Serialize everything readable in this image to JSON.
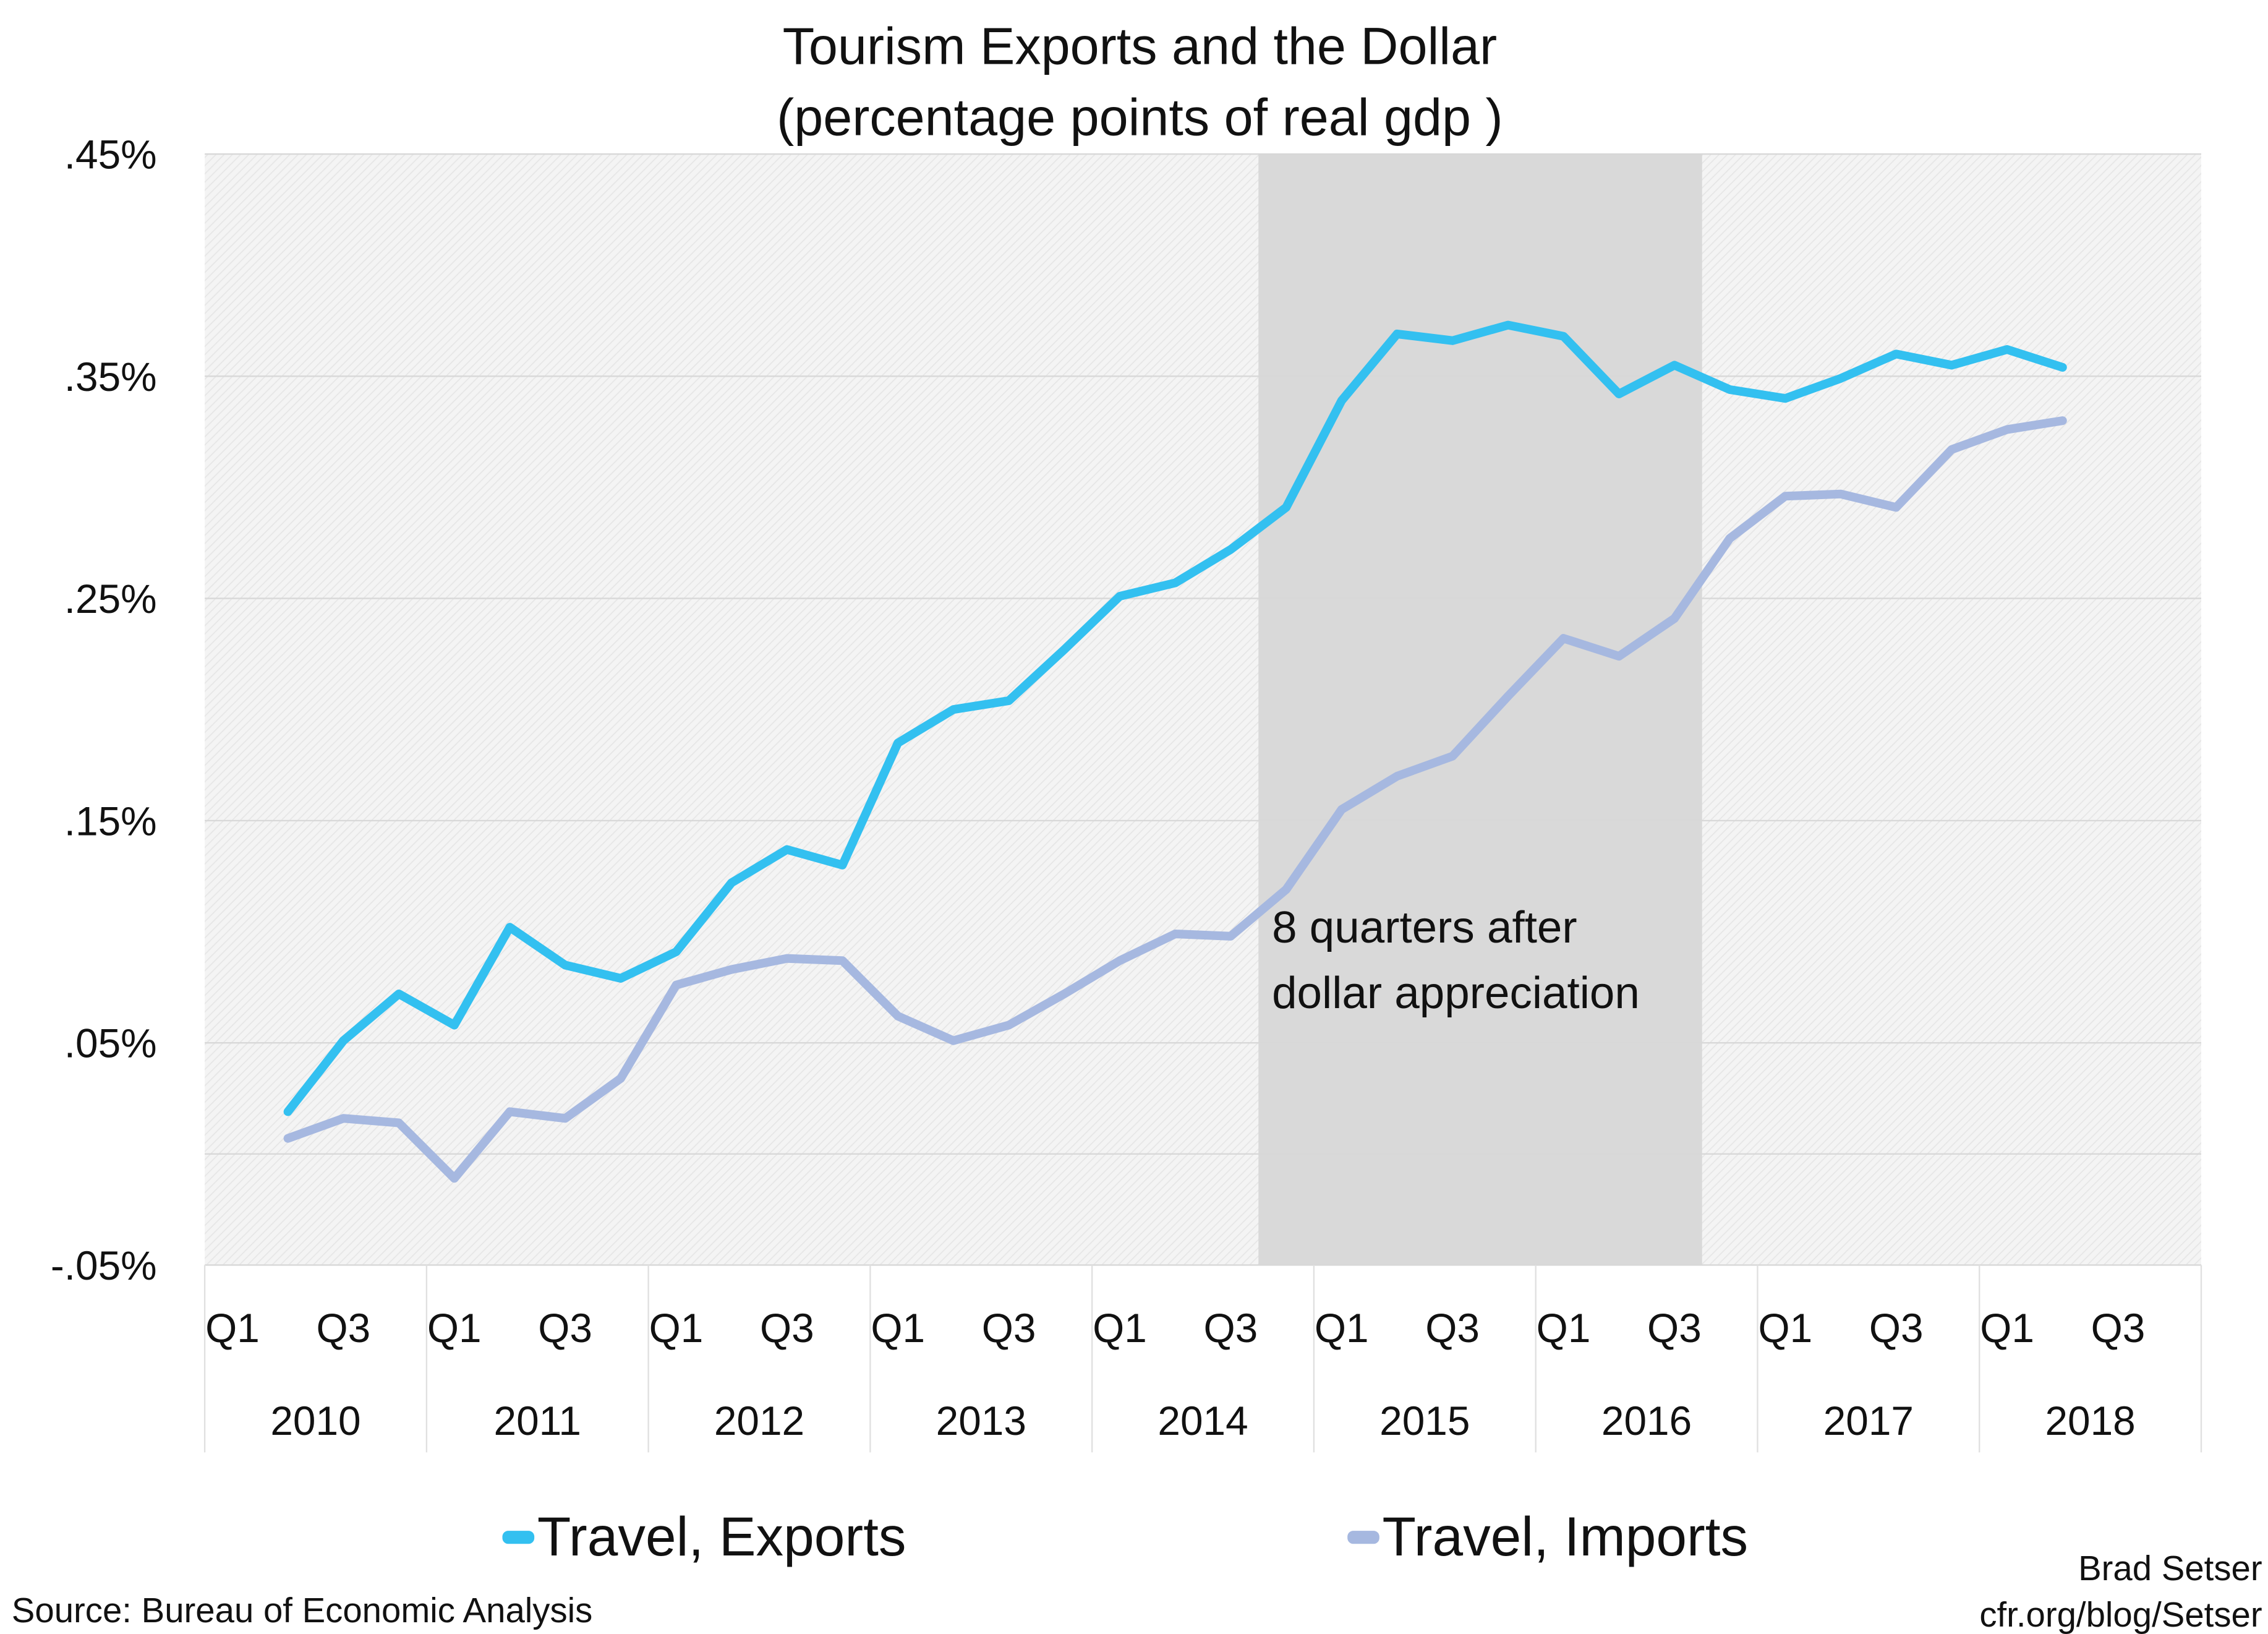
{
  "chart_data": {
    "type": "line",
    "title": "Tourism Exports and the Dollar",
    "subtitle": "(percentage points of real gdp )",
    "xlabel": "",
    "ylabel": "",
    "ylim": [
      -0.05,
      0.45
    ],
    "y_ticks": [
      {
        "value": 0.45,
        "label": ".45%"
      },
      {
        "value": 0.35,
        "label": ".35%"
      },
      {
        "value": 0.25,
        "label": ".25%"
      },
      {
        "value": 0.15,
        "label": ".15%"
      },
      {
        "value": 0.05,
        "label": ".05%"
      },
      {
        "value": -0.05,
        "label": "-.05%"
      }
    ],
    "grid": true,
    "years": [
      "2010",
      "2011",
      "2012",
      "2013",
      "2014",
      "2015",
      "2016",
      "2017",
      "2018"
    ],
    "quarter_labels": [
      "Q1",
      "Q3"
    ],
    "x": [
      "2010Q2",
      "2010Q3",
      "2010Q4",
      "2011Q1",
      "2011Q2",
      "2011Q3",
      "2011Q4",
      "2012Q1",
      "2012Q2",
      "2012Q3",
      "2012Q4",
      "2013Q1",
      "2013Q2",
      "2013Q3",
      "2013Q4",
      "2014Q1",
      "2014Q2",
      "2014Q3",
      "2014Q4",
      "2015Q1",
      "2015Q2",
      "2015Q3",
      "2015Q4",
      "2016Q1",
      "2016Q2",
      "2016Q3",
      "2016Q4",
      "2017Q1",
      "2017Q2",
      "2017Q3",
      "2017Q4",
      "2018Q1",
      "2018Q2"
    ],
    "series": [
      {
        "name": "Travel, Exports",
        "color": "#33c0f0",
        "values": [
          0.019,
          0.051,
          0.072,
          0.058,
          0.102,
          0.085,
          0.079,
          0.091,
          0.122,
          0.137,
          0.13,
          0.185,
          0.2,
          0.204,
          0.227,
          0.251,
          0.257,
          0.272,
          0.291,
          0.339,
          0.369,
          0.366,
          0.373,
          0.368,
          0.342,
          0.355,
          0.344,
          0.34,
          0.349,
          0.36,
          0.355,
          0.362,
          0.354
        ]
      },
      {
        "name": "Travel, Imports",
        "color": "#a6b8e0",
        "values": [
          0.007,
          0.016,
          0.014,
          -0.011,
          0.019,
          0.016,
          0.034,
          0.076,
          0.083,
          0.088,
          0.087,
          0.062,
          0.051,
          0.058,
          0.072,
          0.087,
          0.099,
          0.098,
          0.119,
          0.155,
          0.17,
          0.179,
          0.206,
          0.232,
          0.224,
          0.241,
          0.277,
          0.296,
          0.297,
          0.291,
          0.317,
          0.326,
          0.33
        ]
      }
    ],
    "shaded_region": {
      "from": "2014Q4",
      "to": "2016Q3",
      "color": "#d9d9d9"
    },
    "annotation": [
      "8 quarters after",
      "dollar appreciation"
    ],
    "legend_position": "bottom",
    "source": "Source: Bureau of Economic Analysis",
    "credit": [
      "Brad Setser",
      "cfr.org/blog/Setser"
    ]
  }
}
